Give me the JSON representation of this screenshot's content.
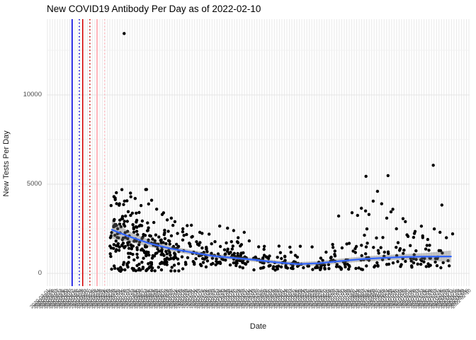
{
  "title": "New COVID19 Antibody Per Day as of 2022-02-10",
  "chart_data": {
    "type": "scatter",
    "title": "New COVID19 Antibody Per Day as of 2022-02-10",
    "xlabel": "Date",
    "ylabel": "New Tests Per Day",
    "x_range": [
      "2020-03-01",
      "2022-02-10"
    ],
    "ylim": [
      0,
      13500
    ],
    "grid": "on",
    "legend": "none",
    "y_major_ticks": [
      {
        "value": 0,
        "label": "0"
      },
      {
        "value": 5000,
        "label": "5000"
      },
      {
        "value": 10000,
        "label": "10000"
      }
    ],
    "y_minor_ticks": [
      2500,
      7500,
      12500
    ],
    "x_tick_labels": {
      "start_date": "2020-03-01",
      "end_date": "2022-02-10",
      "count": 170,
      "format": "YYYY-MM-DD",
      "angle_deg": 45,
      "color": "#3a3a3a"
    },
    "point_color": "#000000",
    "reference_lines": [
      {
        "name": "blue-solid-vline",
        "x_frac": 0.06,
        "color": "#0000e0",
        "style": "solid",
        "width": 1.6
      },
      {
        "name": "blue-dotted-vline",
        "x_frac": 0.077,
        "color": "#0000e0",
        "style": "dotted",
        "width": 1.5
      },
      {
        "name": "red-solid-vline",
        "x_frac": 0.085,
        "color": "#d40000",
        "style": "solid",
        "width": 1.6
      },
      {
        "name": "red-dotted-vline",
        "x_frac": 0.102,
        "color": "#d40000",
        "style": "dotted",
        "width": 1.5
      },
      {
        "name": "pink-solid-vline",
        "x_frac": 0.119,
        "color": "#ffb3ba",
        "style": "solid",
        "width": 2.0
      },
      {
        "name": "pink-dotted-vline",
        "x_frac": 0.137,
        "color": "#ffb3ba",
        "style": "dotted",
        "width": 1.5
      }
    ],
    "smooth_line": {
      "color": "#3366FF",
      "ribbon_color": "#6e6e6e",
      "ribbon_opacity": 0.4,
      "points": [
        [
          0.154,
          2450,
          500
        ],
        [
          0.191,
          2100,
          300
        ],
        [
          0.241,
          1700,
          200
        ],
        [
          0.291,
          1400,
          150
        ],
        [
          0.342,
          1180,
          130
        ],
        [
          0.392,
          980,
          120
        ],
        [
          0.442,
          870,
          110
        ],
        [
          0.492,
          760,
          110
        ],
        [
          0.543,
          620,
          110
        ],
        [
          0.593,
          520,
          110
        ],
        [
          0.643,
          570,
          120
        ],
        [
          0.693,
          690,
          130
        ],
        [
          0.744,
          800,
          140
        ],
        [
          0.794,
          870,
          150
        ],
        [
          0.844,
          920,
          160
        ],
        [
          0.894,
          940,
          200
        ],
        [
          0.956,
          950,
          330
        ]
      ]
    },
    "outlier_points": [
      [
        0.183,
        13440
      ],
      [
        0.755,
        5440
      ],
      [
        0.807,
        5480
      ],
      [
        0.914,
        6060
      ],
      [
        0.722,
        3400
      ],
      [
        0.735,
        3250
      ],
      [
        0.744,
        3650
      ],
      [
        0.754,
        3500
      ],
      [
        0.762,
        3300
      ],
      [
        0.772,
        4050
      ],
      [
        0.782,
        4600
      ],
      [
        0.792,
        3900
      ],
      [
        0.804,
        3100
      ],
      [
        0.814,
        3450
      ],
      [
        0.827,
        2500
      ],
      [
        0.848,
        2900
      ],
      [
        0.871,
        2350
      ],
      [
        0.889,
        2100
      ],
      [
        0.901,
        1900
      ],
      [
        0.93,
        2300
      ],
      [
        0.945,
        2000
      ],
      [
        0.159,
        4300
      ],
      [
        0.172,
        3900
      ],
      [
        0.184,
        4050
      ],
      [
        0.198,
        4500
      ],
      [
        0.209,
        4200
      ],
      [
        0.223,
        3800
      ],
      [
        0.234,
        4700
      ],
      [
        0.248,
        4100
      ],
      [
        0.26,
        3600
      ],
      [
        0.273,
        3300
      ],
      [
        0.285,
        3000
      ],
      [
        0.303,
        2900
      ],
      [
        0.322,
        2500
      ],
      [
        0.342,
        2700
      ],
      [
        0.362,
        2300
      ],
      [
        0.384,
        2200
      ],
      [
        0.409,
        2650
      ],
      [
        0.442,
        2400
      ],
      [
        0.467,
        2300
      ]
    ],
    "scatter_generator": {
      "seed": 1337,
      "count": 620,
      "point_radius": 2.2,
      "regions": [
        {
          "x_min": 0.149,
          "x_max": 0.305,
          "weight": 0.36,
          "sigma": 0.42,
          "cap": 4800
        },
        {
          "x_min": 0.305,
          "x_max": 0.62,
          "weight": 0.34,
          "sigma": 0.42,
          "cap": 2900
        },
        {
          "x_min": 0.62,
          "x_max": 0.962,
          "weight": 0.3,
          "sigma": 0.6,
          "cap": 3900
        }
      ],
      "low_band": {
        "x_max": 0.33,
        "probability": 0.2,
        "value_min": 120,
        "value_max": 640
      },
      "value_min": 15
    },
    "grid_colors": {
      "major": "#e4e4e4",
      "minor": "#f1f1f1",
      "vertical": "#e9e9e9"
    },
    "background": "#ffffff"
  }
}
